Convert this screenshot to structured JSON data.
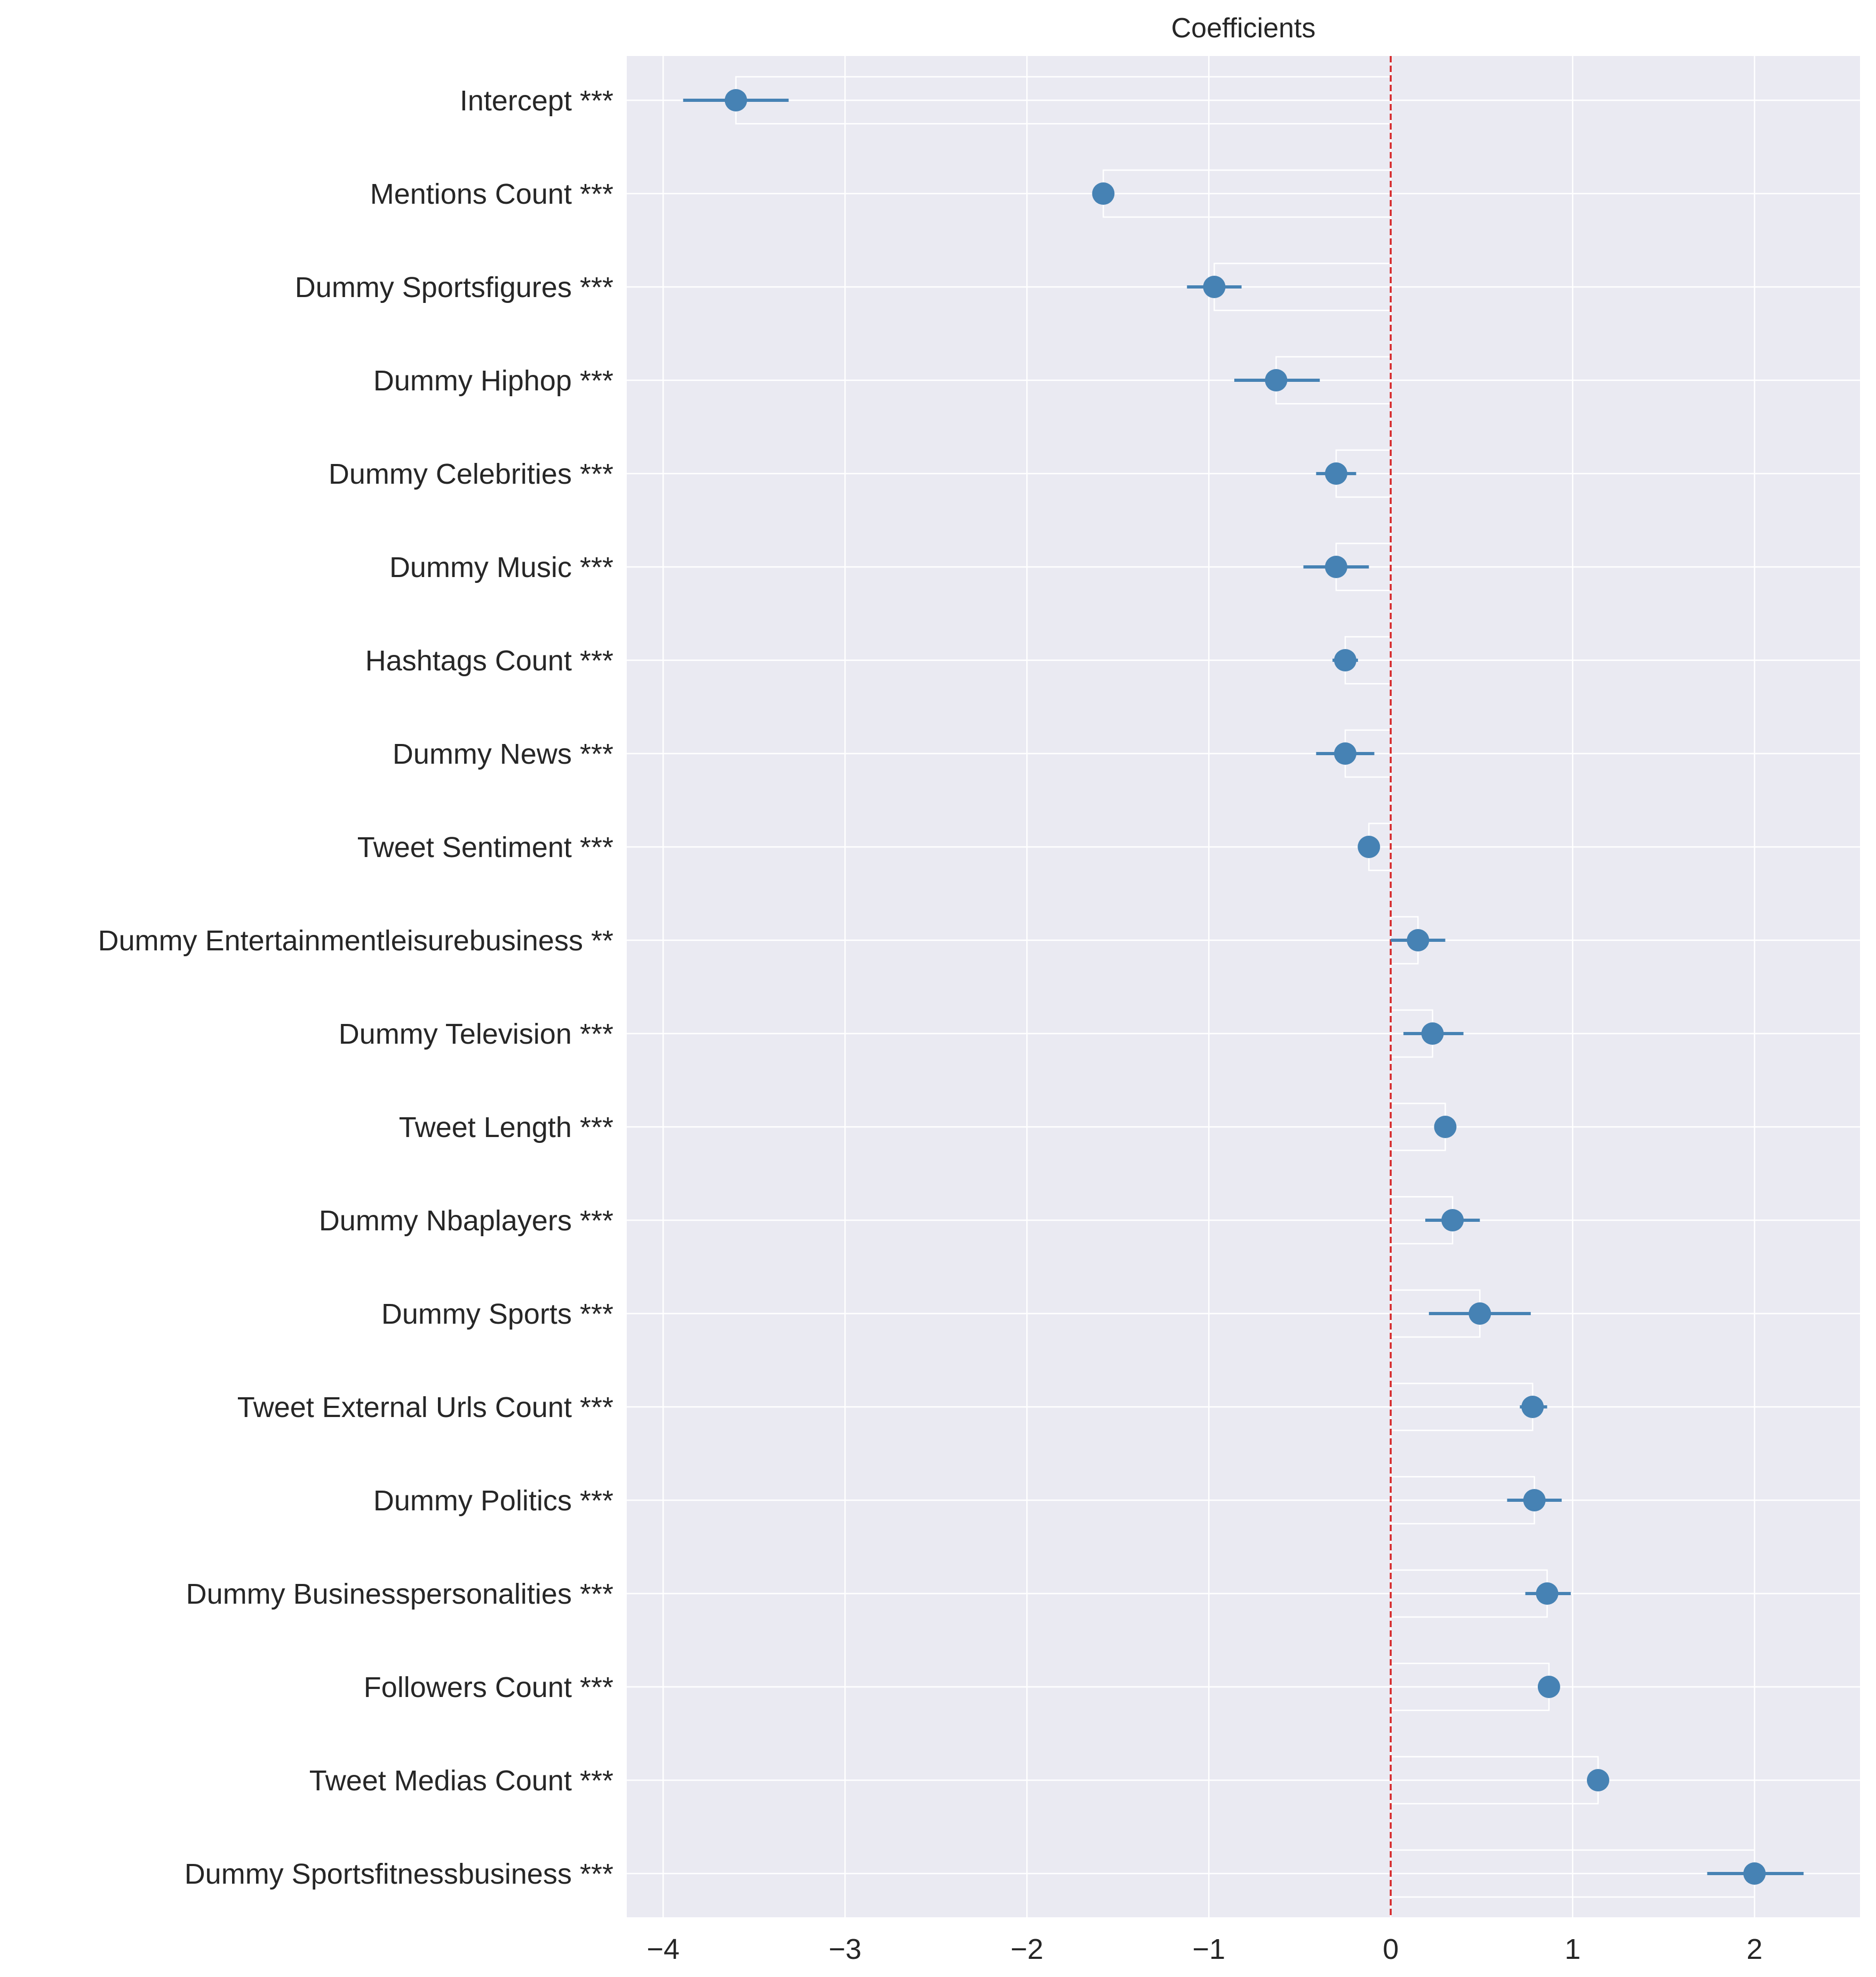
{
  "chart_data": {
    "type": "scatter",
    "title": "Coefficients",
    "xlabel": "",
    "ylabel": "",
    "xlim": [
      -4.2,
      2.58
    ],
    "xticks": [
      -4,
      -3,
      -2,
      -1,
      0,
      1,
      2
    ],
    "xtick_labels": [
      "−4",
      "−3",
      "−2",
      "−1",
      "0",
      "1",
      "2"
    ],
    "grid": true,
    "reference_line": {
      "x": 0,
      "color": "#d62728",
      "style": "dashed"
    },
    "colors": {
      "marker": "#4682b4",
      "background": "#eaeaf2",
      "grid": "#ffffff",
      "bar_edge": "#ffffff"
    },
    "categories": [
      "Intercept ***",
      "Mentions Count ***",
      "Dummy Sportsfigures ***",
      "Dummy Hiphop ***",
      "Dummy Celebrities ***",
      "Dummy Music ***",
      "Hashtags Count ***",
      "Dummy News ***",
      "Tweet Sentiment ***",
      "Dummy Entertainmentleisurebusiness **",
      "Dummy Television ***",
      "Tweet Length ***",
      "Dummy Nbaplayers ***",
      "Dummy Sports ***",
      "Tweet External Urls Count ***",
      "Dummy Politics ***",
      "Dummy Businesspersonalities ***",
      "Followers Count ***",
      "Tweet Medias Count ***",
      "Dummy Sportsfitnessbusiness ***"
    ],
    "values": [
      -3.6,
      -1.58,
      -0.97,
      -0.63,
      -0.3,
      -0.3,
      -0.25,
      -0.25,
      -0.12,
      0.15,
      0.23,
      0.3,
      0.34,
      0.49,
      0.78,
      0.79,
      0.86,
      0.87,
      1.14,
      2.0
    ],
    "ci_lower": [
      -3.89,
      -1.6,
      -1.12,
      -0.86,
      -0.41,
      -0.48,
      -0.32,
      -0.41,
      -0.13,
      0.0,
      0.07,
      0.28,
      0.19,
      0.21,
      0.71,
      0.64,
      0.74,
      0.85,
      1.08,
      1.74
    ],
    "ci_upper": [
      -3.31,
      -1.56,
      -0.82,
      -0.39,
      -0.19,
      -0.12,
      -0.18,
      -0.09,
      -0.11,
      0.3,
      0.4,
      0.32,
      0.49,
      0.77,
      0.86,
      0.94,
      0.99,
      0.89,
      1.2,
      2.27
    ]
  }
}
